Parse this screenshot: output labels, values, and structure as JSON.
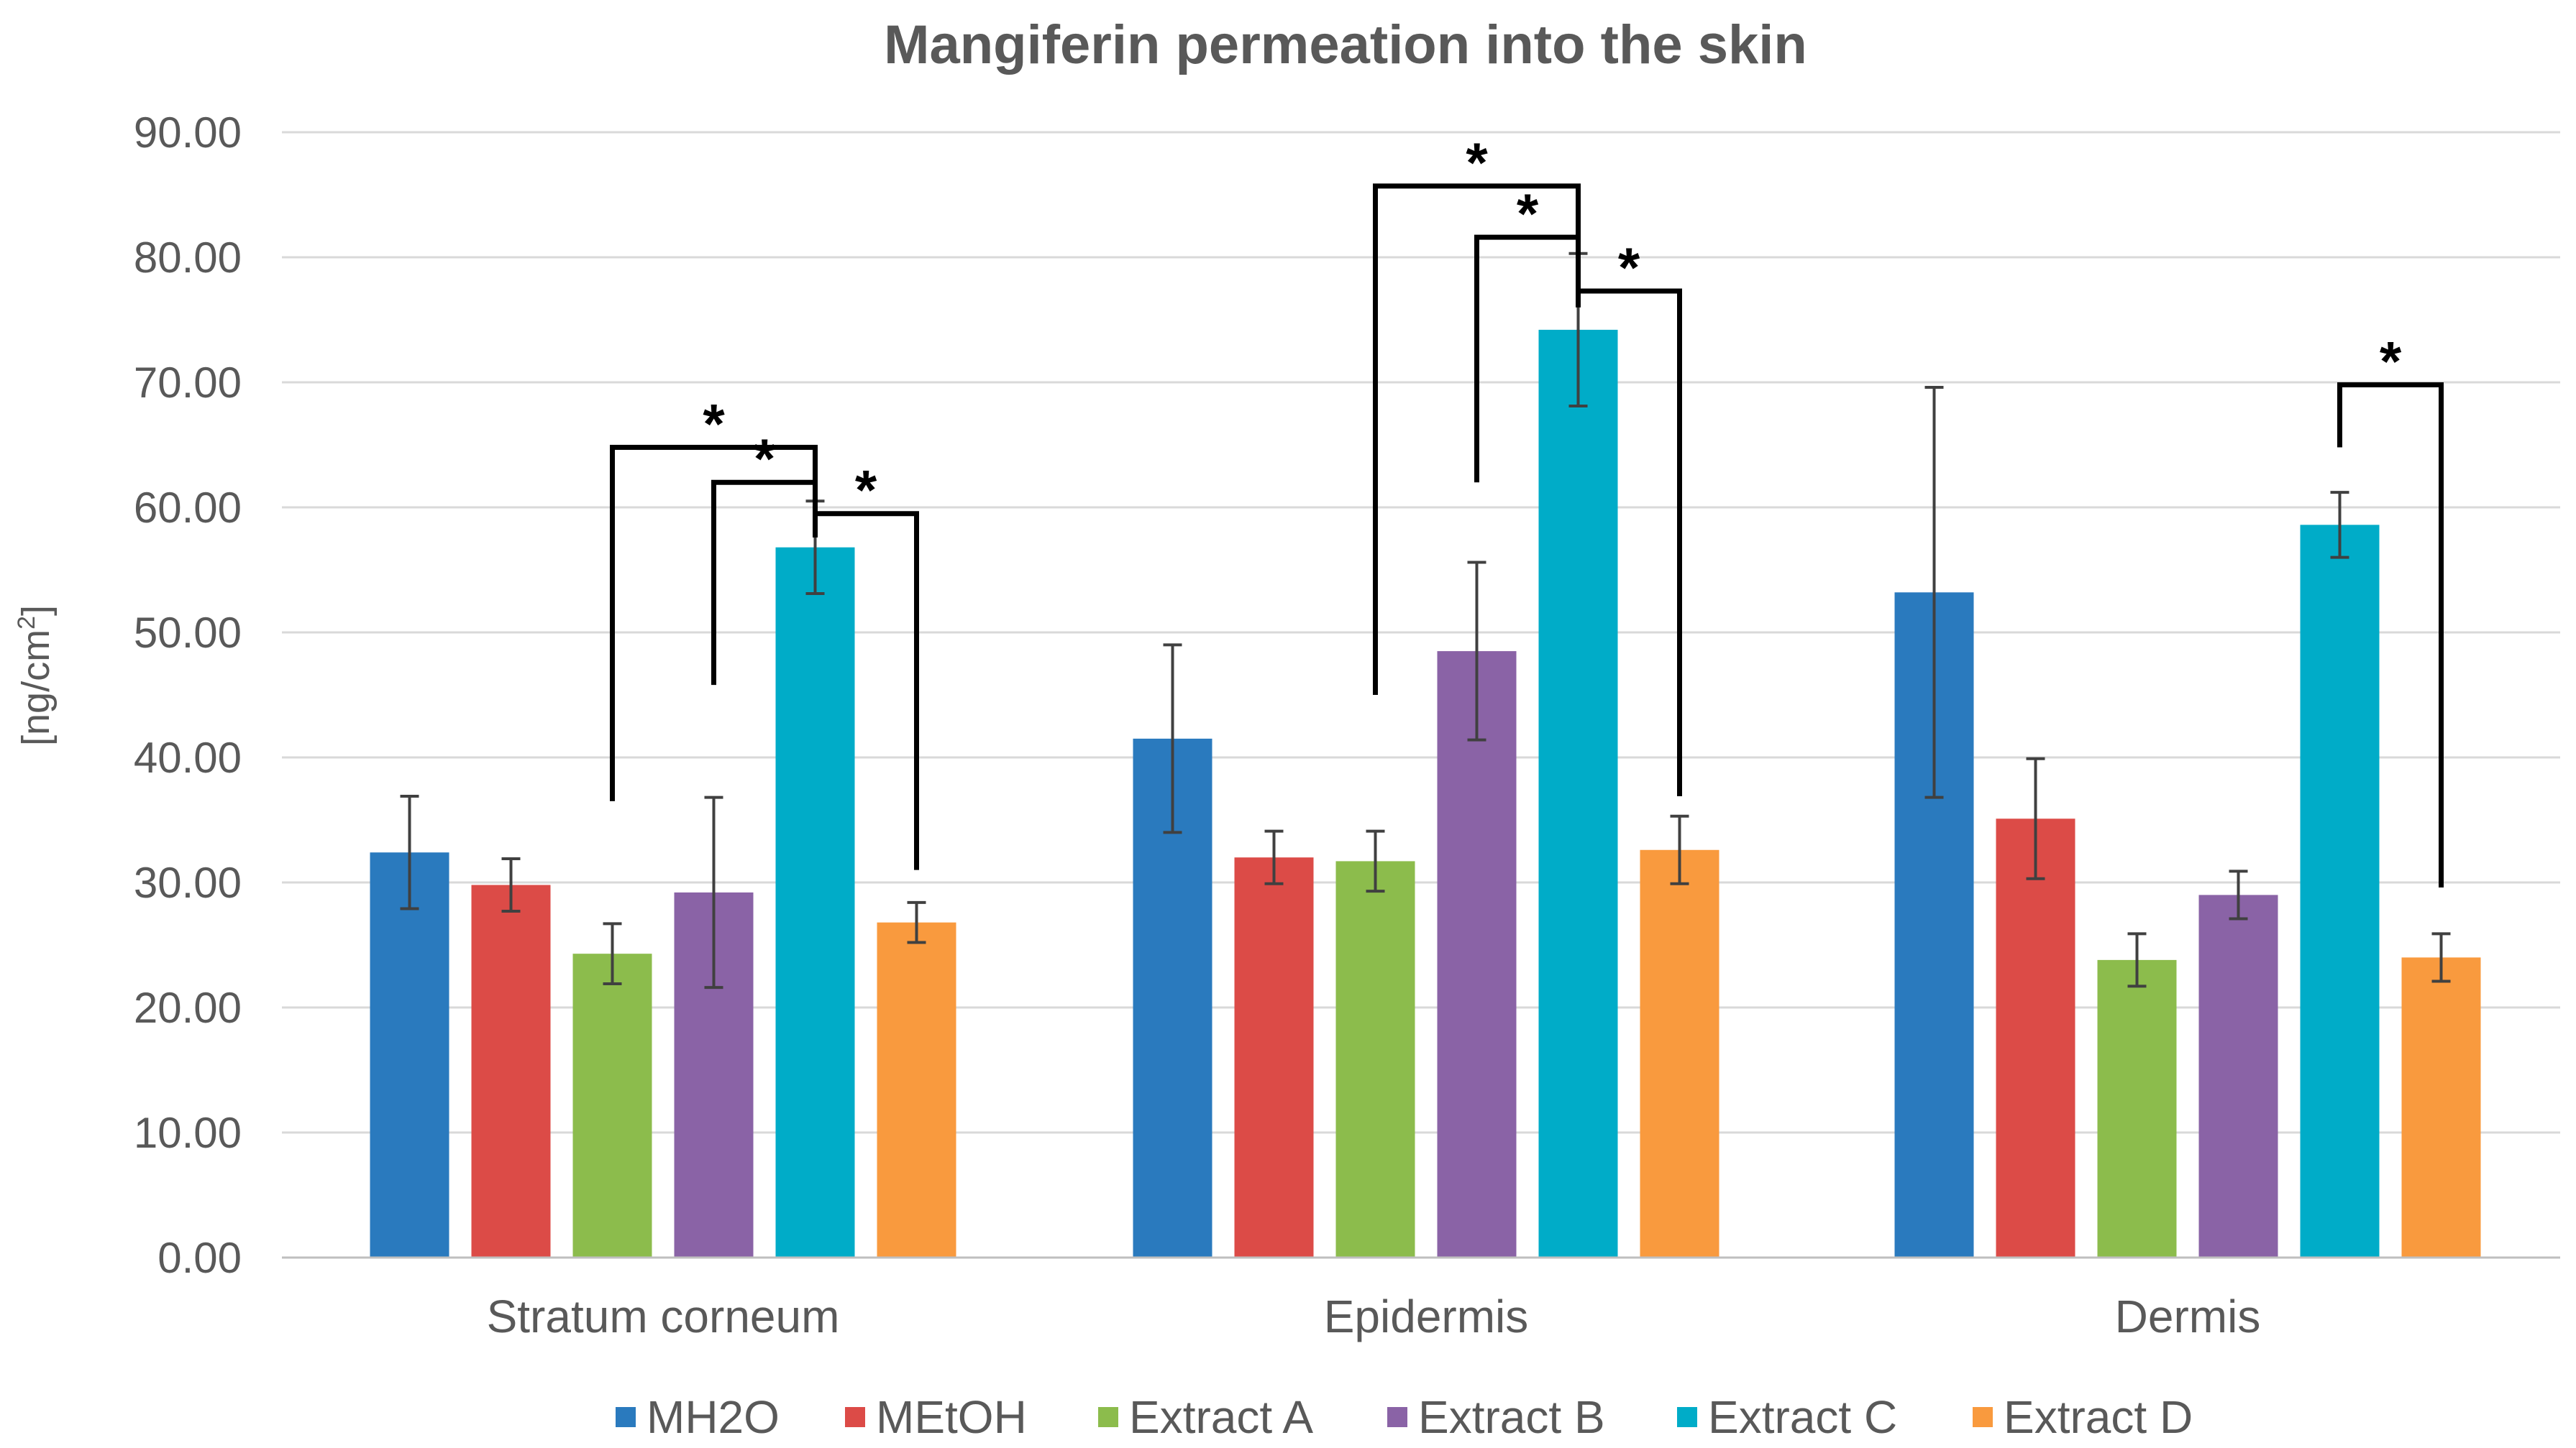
{
  "chart_data": {
    "type": "bar",
    "title": "Mangiferin permeation into the skin",
    "xlabel": "",
    "ylabel": "[ng/cm",
    "ylabel_superscript": "2",
    "ylabel_suffix": "]",
    "ylim": [
      0,
      90
    ],
    "ytick_step": 10,
    "ytick_labels": [
      "0.00",
      "10.00",
      "20.00",
      "30.00",
      "40.00",
      "50.00",
      "60.00",
      "70.00",
      "80.00",
      "90.00"
    ],
    "grid": true,
    "legend_position": "bottom",
    "categories": [
      "Stratum corneum",
      "Epidermis",
      "Dermis"
    ],
    "series": [
      {
        "name": "MH2O",
        "color": "#2a7abe",
        "values": [
          32.4,
          41.5,
          53.2
        ],
        "errors": [
          4.5,
          7.5,
          16.4
        ]
      },
      {
        "name": "MEtOH",
        "color": "#dc4b47",
        "values": [
          29.8,
          32.0,
          35.1
        ],
        "errors": [
          2.1,
          2.1,
          4.8
        ]
      },
      {
        "name": "Extract A",
        "color": "#8cbc4c",
        "values": [
          24.3,
          31.7,
          23.8
        ],
        "errors": [
          2.4,
          2.4,
          2.1
        ]
      },
      {
        "name": "Extract B",
        "color": "#8a63a6",
        "values": [
          29.2,
          48.5,
          29.0
        ],
        "errors": [
          7.6,
          7.1,
          1.9
        ]
      },
      {
        "name": "Extract C",
        "color": "#00acc8",
        "values": [
          56.8,
          74.2,
          58.6
        ],
        "errors": [
          3.7,
          6.1,
          2.6
        ]
      },
      {
        "name": "Extract D",
        "color": "#f99a3e",
        "values": [
          26.8,
          32.6,
          24.0
        ],
        "errors": [
          1.6,
          2.7,
          1.9
        ]
      }
    ],
    "significance": [
      {
        "category": "Stratum corneum",
        "from": "Extract A",
        "to": "Extract C",
        "label": "*",
        "bracket_y": 64.8,
        "left_end": 36.5,
        "right_end": 57.6
      },
      {
        "category": "Stratum corneum",
        "from": "Extract B",
        "to": "Extract C",
        "label": "*",
        "bracket_y": 62.0,
        "left_end": 45.8,
        "right_end": 57.6
      },
      {
        "category": "Stratum corneum",
        "from": "Extract C",
        "to": "Extract D",
        "label": "*",
        "bracket_y": 59.5,
        "left_end": 57.6,
        "right_end": 31.0
      },
      {
        "category": "Epidermis",
        "from": "Extract A",
        "to": "Extract C",
        "label": "*",
        "bracket_y": 85.7,
        "left_end": 45.0,
        "right_end": 76.0
      },
      {
        "category": "Epidermis",
        "from": "Extract B",
        "to": "Extract C",
        "label": "*",
        "bracket_y": 81.6,
        "left_end": 62.0,
        "right_end": 76.0
      },
      {
        "category": "Epidermis",
        "from": "Extract C",
        "to": "Extract D",
        "label": "*",
        "bracket_y": 77.3,
        "left_end": 76.0,
        "right_end": 36.9
      },
      {
        "category": "Dermis",
        "from": "Extract C",
        "to": "Extract D",
        "label": "*",
        "bracket_y": 69.8,
        "left_end": 64.8,
        "right_end": 29.6
      }
    ]
  }
}
